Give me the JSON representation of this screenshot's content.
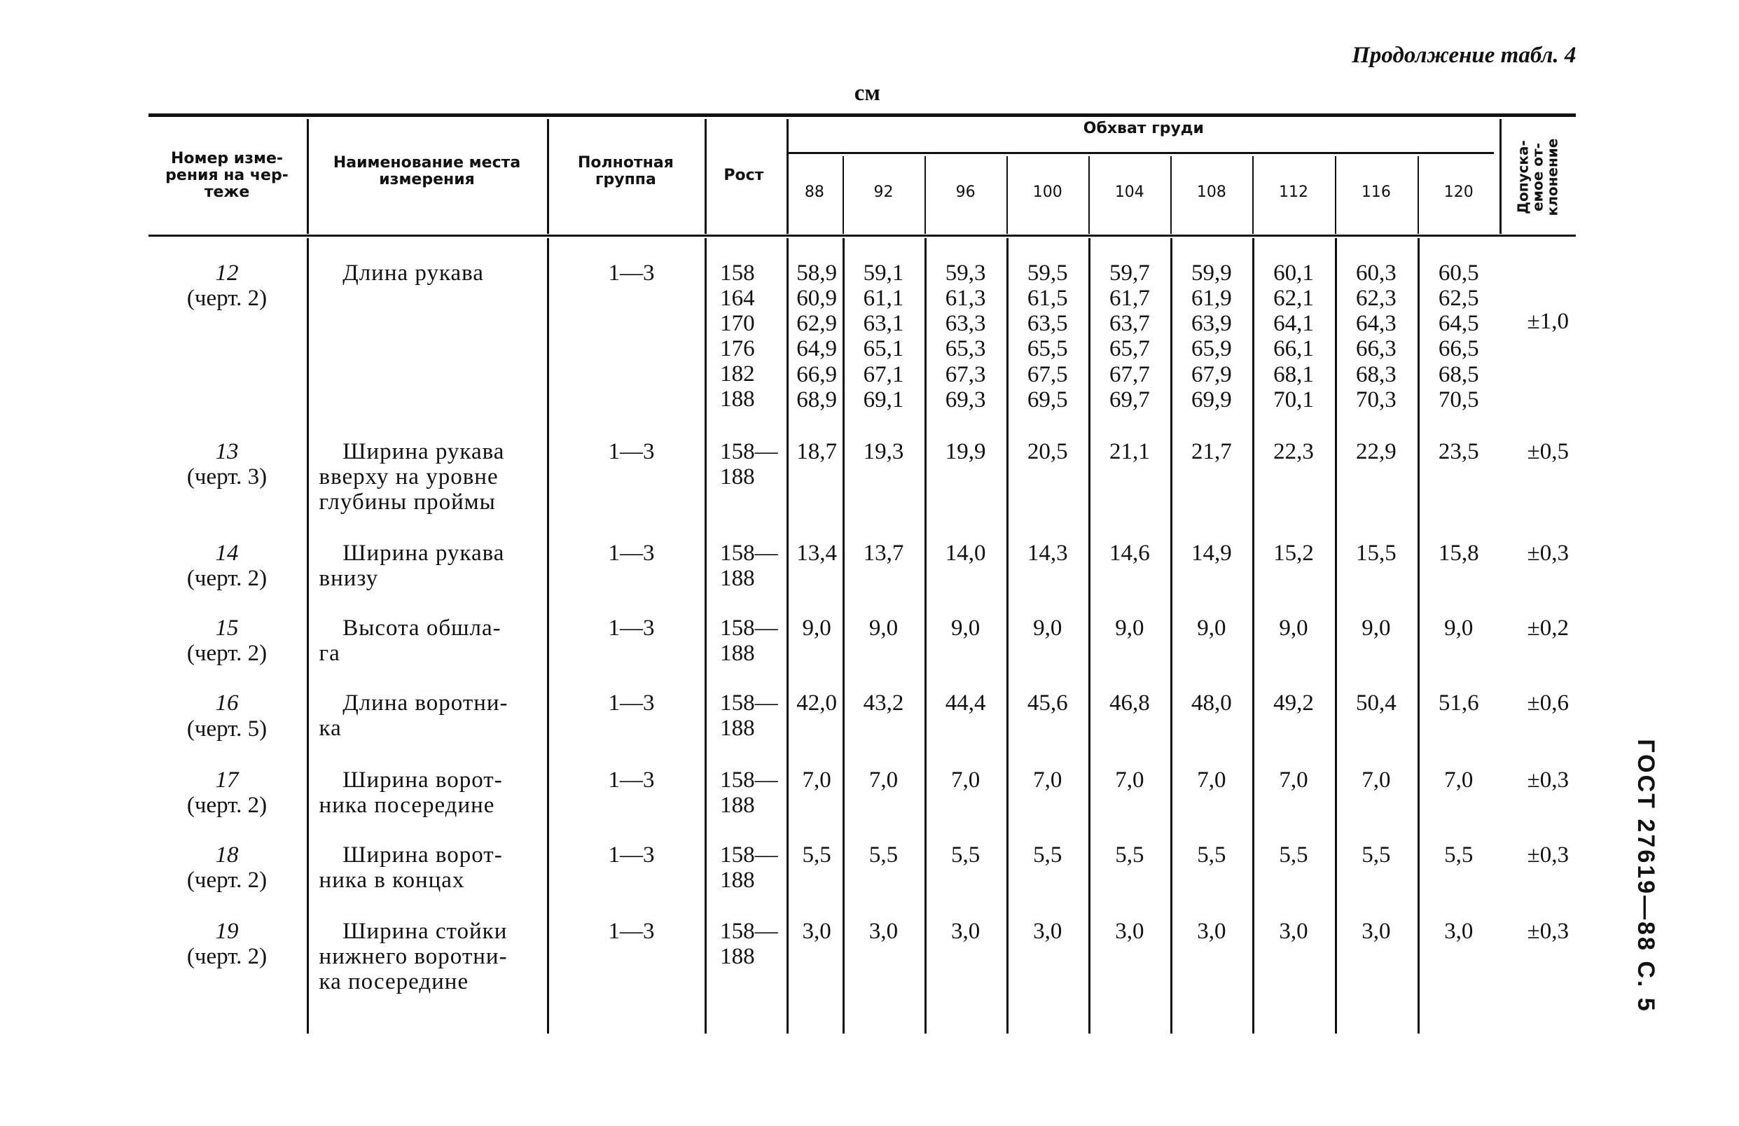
{
  "header": {
    "continuation": "Продолжение табл. 4",
    "unit": "см"
  },
  "table": {
    "columns": {
      "number": "Номер изме-\nрения на чер-\nтеже",
      "name": "Наименование места\nизмерения",
      "group": "Полнотная\nгруппа",
      "height": "Рост",
      "girth": "Обхват груди",
      "tolerance": "Допуска-\nемое от-\nклонение"
    },
    "girths": [
      "88",
      "92",
      "96",
      "100",
      "104",
      "108",
      "112",
      "116",
      "120"
    ],
    "rows": [
      {
        "number": "12",
        "drawing": "(черт. 2)",
        "name": "Длина рукава",
        "group": "1—3",
        "height": "158\n164\n170\n176\n182\n188",
        "values": [
          "58,9\n60,9\n62,9\n64,9\n66,9\n68,9",
          "59,1\n61,1\n63,1\n65,1\n67,1\n69,1",
          "59,3\n61,3\n63,3\n65,3\n67,3\n69,3",
          "59,5\n61,5\n63,5\n65,5\n67,5\n69,5",
          "59,7\n61,7\n63,7\n65,7\n67,7\n69,7",
          "59,9\n61,9\n63,9\n65,9\n67,9\n69,9",
          "60,1\n62,1\n64,1\n66,1\n68,1\n70,1",
          "60,3\n62,3\n64,3\n66,3\n68,3\n70,3",
          "60,5\n62,5\n64,5\n66,5\n68,5\n70,5"
        ],
        "tolerance": "±1,0"
      },
      {
        "number": "13",
        "drawing": "(черт. 3)",
        "name": "Ширина рукава\nвверху на уровне\nглубины проймы",
        "group": "1—3",
        "height": "158—\n188",
        "values": [
          "18,7",
          "19,3",
          "19,9",
          "20,5",
          "21,1",
          "21,7",
          "22,3",
          "22,9",
          "23,5"
        ],
        "tolerance": "±0,5"
      },
      {
        "number": "14",
        "drawing": "(черт. 2)",
        "name": "Ширина рукава\nвнизу",
        "group": "1—3",
        "height": "158—\n188",
        "values": [
          "13,4",
          "13,7",
          "14,0",
          "14,3",
          "14,6",
          "14,9",
          "15,2",
          "15,5",
          "15,8"
        ],
        "tolerance": "±0,3"
      },
      {
        "number": "15",
        "drawing": "(черт. 2)",
        "name": "Высота обшла-\nга",
        "group": "1—3",
        "height": "158—\n188",
        "values": [
          "9,0",
          "9,0",
          "9,0",
          "9,0",
          "9,0",
          "9,0",
          "9,0",
          "9,0",
          "9,0"
        ],
        "tolerance": "±0,2"
      },
      {
        "number": "16",
        "drawing": "(черт. 5)",
        "name": "Длина воротни-\nка",
        "group": "1—3",
        "height": "158—\n188",
        "values": [
          "42,0",
          "43,2",
          "44,4",
          "45,6",
          "46,8",
          "48,0",
          "49,2",
          "50,4",
          "51,6"
        ],
        "tolerance": "±0,6"
      },
      {
        "number": "17",
        "drawing": "(черт. 2)",
        "name": "Ширина ворот-\nника посередине",
        "group": "1—3",
        "height": "158—\n188",
        "values": [
          "7,0",
          "7,0",
          "7,0",
          "7,0",
          "7,0",
          "7,0",
          "7,0",
          "7,0",
          "7,0"
        ],
        "tolerance": "±0,3"
      },
      {
        "number": "18",
        "drawing": "(черт. 2)",
        "name": "Ширина ворот-\nника в концах",
        "group": "1—3",
        "height": "158—\n188",
        "values": [
          "5,5",
          "5,5",
          "5,5",
          "5,5",
          "5,5",
          "5,5",
          "5,5",
          "5,5",
          "5,5"
        ],
        "tolerance": "±0,3"
      },
      {
        "number": "19",
        "drawing": "(черт. 2)",
        "name": "Ширина стойки\nнижнего воротни-\nка посередине",
        "group": "1—3",
        "height": "158—\n188",
        "values": [
          "3,0",
          "3,0",
          "3,0",
          "3,0",
          "3,0",
          "3,0",
          "3,0",
          "3,0",
          "3,0"
        ],
        "tolerance": "±0,3"
      }
    ]
  },
  "side": "ГОСТ 27619—88 С. 5"
}
